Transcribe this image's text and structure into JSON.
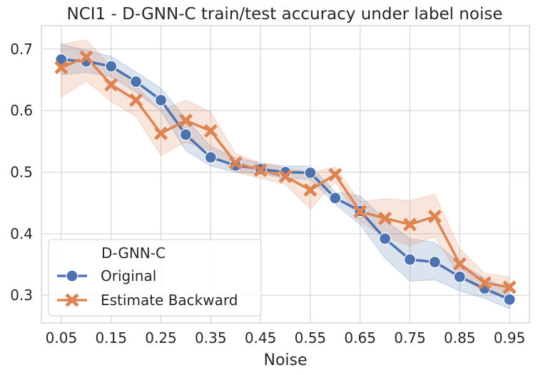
{
  "chart_data": {
    "type": "line",
    "title": "NCI1 - D-GNN-C train/test accuracy under label noise",
    "xlabel": "Noise",
    "ylabel": "",
    "x": [
      0.05,
      0.1,
      0.15,
      0.2,
      0.25,
      0.3,
      0.35,
      0.4,
      0.45,
      0.5,
      0.55,
      0.6,
      0.65,
      0.7,
      0.75,
      0.8,
      0.85,
      0.9,
      0.95
    ],
    "x_ticks": [
      "0.05",
      "0.15",
      "0.25",
      "0.35",
      "0.45",
      "0.55",
      "0.65",
      "0.75",
      "0.85",
      "0.95"
    ],
    "x_tick_values": [
      0.05,
      0.15,
      0.25,
      0.35,
      0.45,
      0.55,
      0.65,
      0.75,
      0.85,
      0.95
    ],
    "y_ticks": [
      "0.3",
      "0.4",
      "0.5",
      "0.6",
      "0.7"
    ],
    "y_tick_values": [
      0.3,
      0.4,
      0.5,
      0.6,
      0.7
    ],
    "xlim": [
      0.01,
      0.99
    ],
    "ylim": [
      0.255,
      0.738
    ],
    "grid": true,
    "legend": {
      "title": "D-GNN-C",
      "placement": "lower-left"
    },
    "series": [
      {
        "name": "Original",
        "color": "#4c72b0",
        "marker": "circle",
        "values": [
          0.683,
          0.68,
          0.672,
          0.647,
          0.617,
          0.561,
          0.524,
          0.511,
          0.505,
          0.5,
          0.499,
          0.458,
          0.437,
          0.392,
          0.358,
          0.354,
          0.33,
          0.311,
          0.293
        ],
        "ci_lower": [
          0.658,
          0.662,
          0.655,
          0.63,
          0.6,
          0.535,
          0.51,
          0.5,
          0.497,
          0.49,
          0.488,
          0.448,
          0.415,
          0.36,
          0.323,
          0.325,
          0.307,
          0.295,
          0.278
        ],
        "ci_upper": [
          0.708,
          0.698,
          0.688,
          0.663,
          0.636,
          0.587,
          0.542,
          0.523,
          0.515,
          0.51,
          0.51,
          0.468,
          0.462,
          0.422,
          0.392,
          0.386,
          0.352,
          0.328,
          0.31
        ]
      },
      {
        "name": "Estimate Backward",
        "color": "#dd8452",
        "marker": "x",
        "values": [
          0.67,
          0.687,
          0.642,
          0.617,
          0.563,
          0.584,
          0.567,
          0.515,
          0.503,
          0.493,
          0.471,
          0.496,
          0.436,
          0.425,
          0.415,
          0.428,
          0.351,
          0.32,
          0.313
        ],
        "ci_lower": [
          0.622,
          0.648,
          0.615,
          0.59,
          0.527,
          0.549,
          0.535,
          0.5,
          0.49,
          0.48,
          0.44,
          0.484,
          0.42,
          0.395,
          0.38,
          0.395,
          0.33,
          0.305,
          0.297
        ],
        "ci_upper": [
          0.708,
          0.715,
          0.672,
          0.64,
          0.6,
          0.617,
          0.598,
          0.53,
          0.515,
          0.507,
          0.5,
          0.508,
          0.452,
          0.457,
          0.454,
          0.464,
          0.376,
          0.336,
          0.33
        ]
      }
    ]
  }
}
